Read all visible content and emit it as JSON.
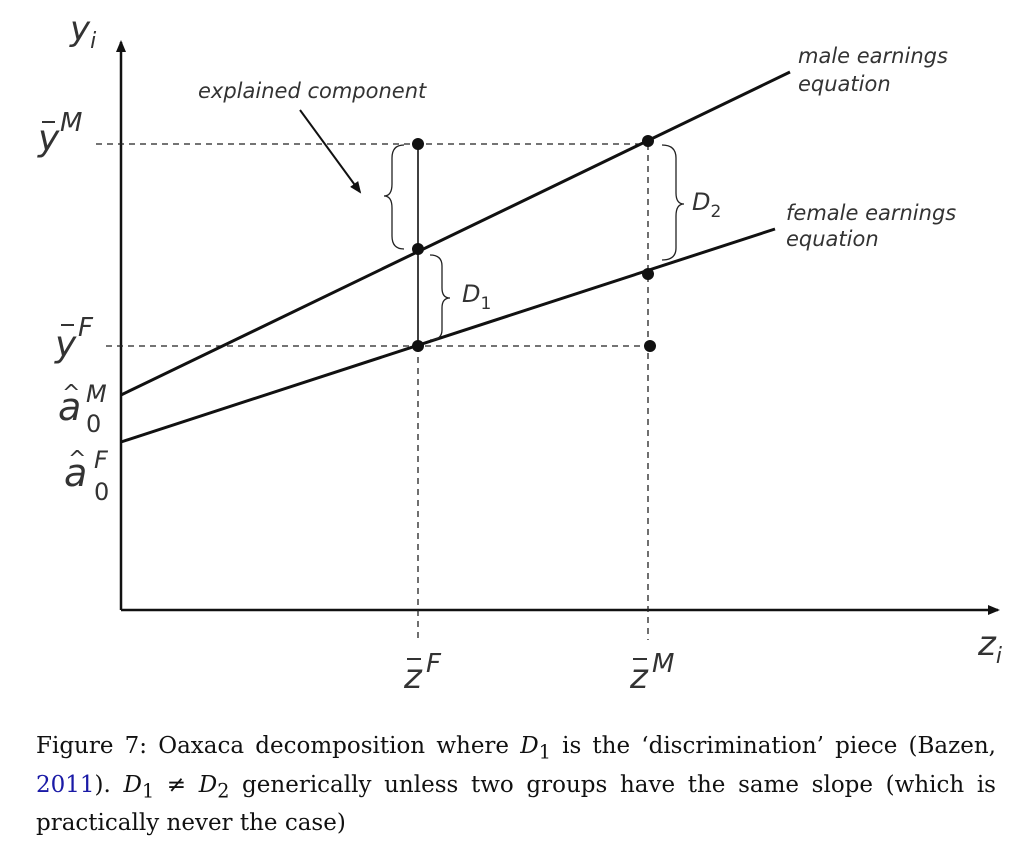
{
  "diagram": {
    "y_axis_label": "y",
    "y_axis_sub": "i",
    "x_axis_label": "z",
    "x_axis_sub": "i",
    "ybar_M": {
      "base": "y",
      "sup": "M"
    },
    "ybar_F": {
      "base": "y",
      "sup": "F"
    },
    "a0_M": {
      "base": "a",
      "sup": "M",
      "sub": "0"
    },
    "a0_F": {
      "base": "a",
      "sup": "F",
      "sub": "0"
    },
    "zbar_F": {
      "base": "z",
      "sup": "F"
    },
    "zbar_M": {
      "base": "z",
      "sup": "M"
    },
    "explained_component": "explained component",
    "male_line_1": "male earnings",
    "male_line_2": "equation",
    "female_line_1": "female earnings",
    "female_line_2": "equation",
    "d1": {
      "base": "D",
      "sub": "1"
    },
    "d2": {
      "base": "D",
      "sub": "2"
    }
  },
  "caption": {
    "prefix": "Figure 7: Oaxaca decomposition where ",
    "d1_base": "D",
    "d1_sub": "1",
    "mid1": " is the ‘discrimination’ piece (Bazen, ",
    "year": "2011",
    "mid2": "). ",
    "neq": " ≠ ",
    "d2_base": "D",
    "d2_sub": "2",
    "suffix": " generically unless two groups have the same slope (which is practically never the case)"
  }
}
